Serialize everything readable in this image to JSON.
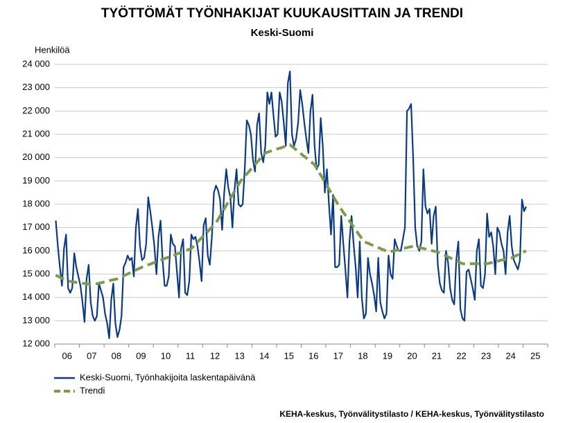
{
  "chart_data": {
    "type": "line",
    "title": "TYÖTTÖMÄT TYÖNHAKIJAT KUUKAUSITTAIN JA TRENDI",
    "subtitle": "Keski-Suomi",
    "y_axis_label": "Henkilöä",
    "source": "KEHA-keskus, Työnvälitystilasto / KEHA-keskus, Työnvälitystilasto",
    "grid": true,
    "legend": "bottom-left",
    "ylim": [
      12000,
      24000
    ],
    "yticks": [
      {
        "value": 12000,
        "label": "12 000"
      },
      {
        "value": 13000,
        "label": "13 000"
      },
      {
        "value": 14000,
        "label": "14 000"
      },
      {
        "value": 15000,
        "label": "15 000"
      },
      {
        "value": 16000,
        "label": "16 000"
      },
      {
        "value": 17000,
        "label": "17 000"
      },
      {
        "value": 18000,
        "label": "18 000"
      },
      {
        "value": 19000,
        "label": "19 000"
      },
      {
        "value": 20000,
        "label": "20 000"
      },
      {
        "value": 21000,
        "label": "21 000"
      },
      {
        "value": 22000,
        "label": "22 000"
      },
      {
        "value": 23000,
        "label": "23 000"
      },
      {
        "value": 24000,
        "label": "24 000"
      }
    ],
    "categories": [
      null,
      null,
      null,
      null,
      null,
      null,
      "06",
      null,
      null,
      null,
      null,
      null,
      null,
      null,
      null,
      null,
      null,
      null,
      "07",
      null,
      null,
      null,
      null,
      null,
      null,
      null,
      null,
      null,
      null,
      null,
      "08",
      null,
      null,
      null,
      null,
      null,
      null,
      null,
      null,
      null,
      null,
      null,
      "09",
      null,
      null,
      null,
      null,
      null,
      null,
      null,
      null,
      null,
      null,
      null,
      "10",
      null,
      null,
      null,
      null,
      null,
      null,
      null,
      null,
      null,
      null,
      null,
      "11",
      null,
      null,
      null,
      null,
      null,
      null,
      null,
      null,
      null,
      null,
      null,
      "12",
      null,
      null,
      null,
      null,
      null,
      null,
      null,
      null,
      null,
      null,
      null,
      "13",
      null,
      null,
      null,
      null,
      null,
      null,
      null,
      null,
      null,
      null,
      null,
      "14",
      null,
      null,
      null,
      null,
      null,
      null,
      null,
      null,
      null,
      null,
      null,
      "15",
      null,
      null,
      null,
      null,
      null,
      null,
      null,
      null,
      null,
      null,
      null,
      "16",
      null,
      null,
      null,
      null,
      null,
      null,
      null,
      null,
      null,
      null,
      null,
      "17",
      null,
      null,
      null,
      null,
      null,
      null,
      null,
      null,
      null,
      null,
      null,
      "18",
      null,
      null,
      null,
      null,
      null,
      null,
      null,
      null,
      null,
      null,
      null,
      "19",
      null,
      null,
      null,
      null,
      null,
      null,
      null,
      null,
      null,
      null,
      null,
      "20",
      null,
      null,
      null,
      null,
      null,
      null,
      null,
      null,
      null,
      null,
      null,
      "21",
      null,
      null,
      null,
      null,
      null,
      null,
      null,
      null,
      null,
      null,
      null,
      "22",
      null,
      null,
      null,
      null,
      null,
      null,
      null,
      null,
      null,
      null,
      null,
      "23",
      null,
      null,
      null,
      null,
      null,
      null,
      null,
      null,
      null,
      null,
      null,
      "24",
      null,
      null,
      null,
      null,
      null,
      null,
      null,
      null,
      null,
      null,
      null,
      "25",
      null,
      null,
      null,
      null,
      null
    ],
    "series": [
      {
        "name": "Keski-Suomi, Työnhakijoita laskentapäivänä",
        "color": "#0b3a80",
        "dash": false,
        "values": [
          17300,
          16200,
          15300,
          14500,
          16100,
          16700,
          14400,
          14200,
          14400,
          15900,
          15300,
          14900,
          14500,
          13800,
          12950,
          14800,
          15400,
          13800,
          13200,
          13000,
          13200,
          14600,
          14300,
          14000,
          13300,
          12900,
          12250,
          13900,
          14600,
          12900,
          12300,
          12600,
          13200,
          15300,
          15500,
          15800,
          15600,
          15700,
          14900,
          17000,
          17800,
          16200,
          15600,
          15700,
          16300,
          18300,
          17700,
          17000,
          16200,
          15000,
          16600,
          17300,
          15600,
          14500,
          14500,
          14900,
          16700,
          16300,
          16200,
          15100,
          14000,
          16100,
          16500,
          14200,
          14100,
          14700,
          16700,
          16500,
          16600,
          16200,
          15500,
          14700,
          17100,
          17400,
          15800,
          15400,
          16600,
          18500,
          18800,
          18600,
          18200,
          16900,
          18500,
          19500,
          18700,
          18300,
          17000,
          18600,
          19500,
          18000,
          17900,
          18000,
          19500,
          21600,
          21400,
          21000,
          19900,
          19400,
          21400,
          21900,
          20200,
          19800,
          20500,
          22800,
          22300,
          22800,
          21800,
          20900,
          21000,
          22800,
          22400,
          21500,
          20500,
          23200,
          23700,
          21000,
          20500,
          20800,
          21500,
          22900,
          22300,
          21500,
          20800,
          20200,
          22000,
          22700,
          20500,
          19500,
          19700,
          21700,
          20500,
          18500,
          19500,
          18000,
          16700,
          18400,
          15300,
          15300,
          15400,
          17500,
          16300,
          15200,
          14000,
          16400,
          17500,
          16300,
          15300,
          14000,
          16400,
          14000,
          13100,
          13300,
          15700,
          15000,
          14600,
          14100,
          13400,
          15700,
          13800,
          13400,
          13100,
          13300,
          15800,
          15000,
          14800,
          16500,
          16200,
          16000,
          16000,
          16500,
          17000,
          22000,
          22100,
          22300,
          20000,
          17000,
          16200,
          16000,
          16400,
          19500,
          17900,
          17600,
          17800,
          16300,
          17500,
          17900,
          15400,
          14600,
          14300,
          14200,
          16000,
          15500,
          14400,
          13900,
          13700,
          15600,
          16400,
          13500,
          13100,
          13000,
          15100,
          15200,
          14800,
          14400,
          13900,
          16000,
          16500,
          14500,
          14400,
          15000,
          17600,
          16600,
          16800,
          16200,
          15000,
          17000,
          16800,
          16300,
          16000,
          15000,
          16800,
          17500,
          16200,
          15600,
          15400,
          15200,
          15600,
          18200,
          17700,
          17900,
          null,
          null,
          null,
          null,
          null,
          null,
          null,
          null,
          null,
          null
        ]
      },
      {
        "name": "Trendi",
        "color": "#7d9b4e",
        "dash": true,
        "values": [
          14950,
          14910,
          14870,
          14820,
          14780,
          14740,
          14700,
          14690,
          14680,
          14660,
          14650,
          14640,
          14620,
          14610,
          14600,
          14590,
          14580,
          14560,
          14550,
          14570,
          14590,
          14610,
          14630,
          14650,
          14680,
          14700,
          14720,
          14740,
          14760,
          14780,
          14800,
          14840,
          14880,
          14930,
          14970,
          15010,
          15050,
          15090,
          15130,
          15180,
          15220,
          15260,
          15300,
          15330,
          15370,
          15400,
          15430,
          15470,
          15500,
          15530,
          15570,
          15600,
          15630,
          15670,
          15700,
          15730,
          15770,
          15800,
          15830,
          15870,
          15900,
          15930,
          15970,
          16000,
          16030,
          16070,
          16100,
          16190,
          16280,
          16380,
          16470,
          16560,
          16650,
          16740,
          16830,
          16930,
          17020,
          17110,
          17200,
          17350,
          17500,
          17650,
          17800,
          17950,
          18100,
          18250,
          18400,
          18550,
          18700,
          18850,
          19000,
          19100,
          19200,
          19300,
          19400,
          19500,
          19600,
          19700,
          19800,
          19900,
          20000,
          20100,
          20200,
          20230,
          20260,
          20290,
          20320,
          20350,
          20380,
          20400,
          20430,
          20460,
          20490,
          20520,
          20550,
          20480,
          20410,
          20340,
          20270,
          20200,
          20120,
          20050,
          19980,
          19910,
          19840,
          19770,
          19700,
          19550,
          19400,
          19250,
          19100,
          18950,
          18800,
          18650,
          18500,
          18350,
          18200,
          18050,
          17900,
          17780,
          17650,
          17530,
          17400,
          17280,
          17150,
          17030,
          16900,
          16780,
          16650,
          16530,
          16400,
          16360,
          16330,
          16290,
          16250,
          16210,
          16180,
          16140,
          16100,
          16060,
          16030,
          15990,
          15950,
          15970,
          15990,
          16010,
          16030,
          16050,
          16080,
          16100,
          16120,
          16140,
          16160,
          16180,
          16200,
          16180,
          16160,
          16140,
          16120,
          16100,
          16080,
          16050,
          16030,
          16010,
          15990,
          15970,
          15950,
          15910,
          15870,
          15830,
          15780,
          15740,
          15700,
          15660,
          15620,
          15580,
          15530,
          15490,
          15450,
          15450,
          15450,
          15450,
          15450,
          15450,
          15450,
          15450,
          15450,
          15450,
          15450,
          15450,
          15450,
          15470,
          15490,
          15510,
          15530,
          15550,
          15580,
          15600,
          15620,
          15640,
          15660,
          15680,
          15700,
          15740,
          15790,
          15830,
          15870,
          15910,
          15960,
          16000,
          null,
          null,
          null,
          null,
          null,
          null,
          null,
          null,
          null,
          null
        ]
      }
    ]
  }
}
